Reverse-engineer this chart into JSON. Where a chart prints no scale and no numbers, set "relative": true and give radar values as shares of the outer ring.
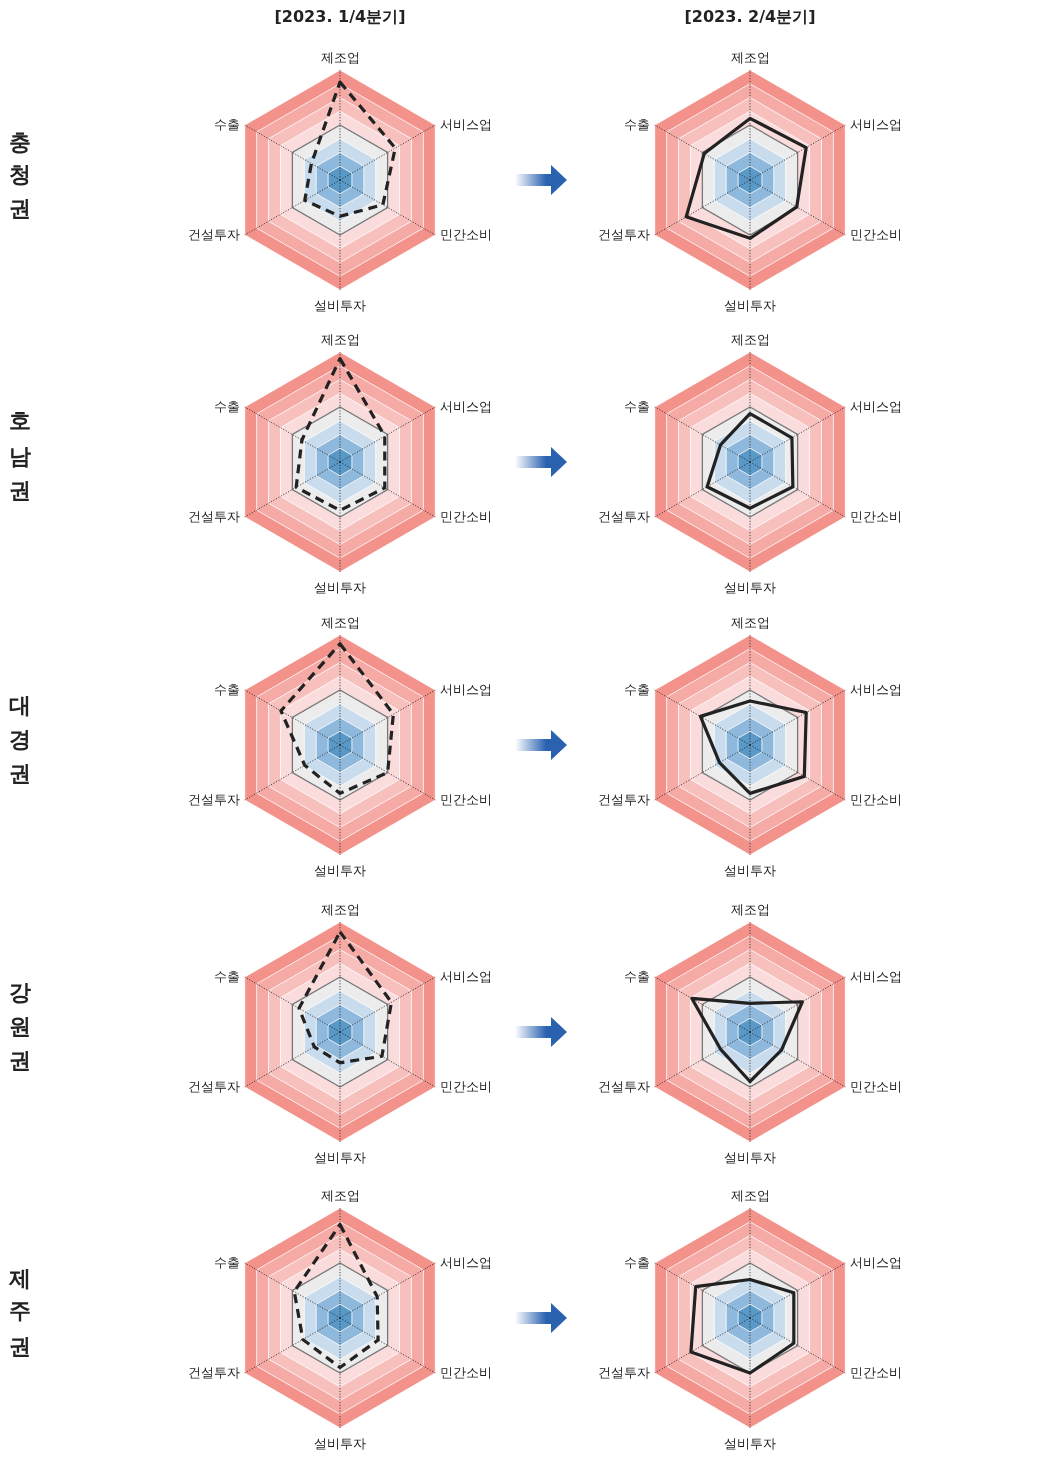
{
  "chart_data": [
    {
      "type": "radar",
      "title": "[2023. 1/4분기]",
      "ylabel": "충청권",
      "relative": true,
      "line_style": "dashed",
      "categories": [
        "제조업",
        "서비스업",
        "민간소비",
        "설비투자",
        "건설투자",
        "수출"
      ],
      "series": [
        {
          "color": "#222222",
          "values": [
            0.89,
            0.58,
            0.45,
            0.33,
            0.37,
            0.3
          ]
        }
      ]
    },
    {
      "type": "radar",
      "title": "[2023. 2/4분기]",
      "relative": true,
      "line_style": "solid",
      "categories": [
        "제조업",
        "서비스업",
        "민간소비",
        "설비투자",
        "건설투자",
        "수출"
      ],
      "series": [
        {
          "color": "#222222",
          "values": [
            0.56,
            0.59,
            0.49,
            0.53,
            0.67,
            0.48
          ]
        }
      ]
    },
    {
      "type": "radar",
      "ylabel": "호남권",
      "relative": true,
      "line_style": "dashed",
      "categories": [
        "제조업",
        "서비스업",
        "민간소비",
        "설비투자",
        "건설투자",
        "수출"
      ],
      "series": [
        {
          "color": "#222222",
          "values": [
            0.94,
            0.47,
            0.47,
            0.44,
            0.46,
            0.4
          ]
        }
      ]
    },
    {
      "type": "radar",
      "relative": true,
      "line_style": "solid",
      "categories": [
        "제조업",
        "서비스업",
        "민간소비",
        "설비투자",
        "건설투자",
        "수출"
      ],
      "series": [
        {
          "color": "#222222",
          "values": [
            0.44,
            0.44,
            0.45,
            0.42,
            0.45,
            0.31
          ]
        }
      ]
    },
    {
      "type": "radar",
      "ylabel": "대경권",
      "relative": true,
      "line_style": "dashed",
      "categories": [
        "제조업",
        "서비스업",
        "민간소비",
        "설비투자",
        "건설투자",
        "수출"
      ],
      "series": [
        {
          "color": "#222222",
          "values": [
            0.92,
            0.56,
            0.5,
            0.44,
            0.37,
            0.62
          ]
        }
      ]
    },
    {
      "type": "radar",
      "relative": true,
      "line_style": "solid",
      "categories": [
        "제조업",
        "서비스업",
        "민간소비",
        "설비투자",
        "건설투자",
        "수출"
      ],
      "series": [
        {
          "color": "#222222",
          "values": [
            0.4,
            0.59,
            0.57,
            0.44,
            0.32,
            0.52
          ]
        }
      ]
    },
    {
      "type": "radar",
      "ylabel": "강원권",
      "relative": true,
      "line_style": "dashed",
      "categories": [
        "제조업",
        "서비스업",
        "민간소비",
        "설비투자",
        "건설투자",
        "수출"
      ],
      "series": [
        {
          "color": "#222222",
          "values": [
            0.91,
            0.54,
            0.44,
            0.28,
            0.27,
            0.43
          ]
        }
      ]
    },
    {
      "type": "radar",
      "relative": true,
      "line_style": "solid",
      "categories": [
        "제조업",
        "서비스업",
        "민간소비",
        "설비투자",
        "건설투자",
        "수출"
      ],
      "series": [
        {
          "color": "#222222",
          "values": [
            0.26,
            0.55,
            0.33,
            0.45,
            0.31,
            0.61
          ]
        }
      ]
    },
    {
      "type": "radar",
      "ylabel": "제주권",
      "relative": true,
      "line_style": "dashed",
      "categories": [
        "제조업",
        "서비스업",
        "민간소비",
        "설비투자",
        "건설투자",
        "수출"
      ],
      "series": [
        {
          "color": "#222222",
          "values": [
            0.85,
            0.39,
            0.4,
            0.45,
            0.39,
            0.48
          ]
        }
      ]
    },
    {
      "type": "radar",
      "relative": true,
      "line_style": "solid",
      "categories": [
        "제조업",
        "서비스업",
        "민간소비",
        "설비투자",
        "건설투자",
        "수출"
      ],
      "series": [
        {
          "color": "#222222",
          "values": [
            0.35,
            0.46,
            0.46,
            0.5,
            0.62,
            0.57
          ]
        }
      ]
    }
  ]
}
